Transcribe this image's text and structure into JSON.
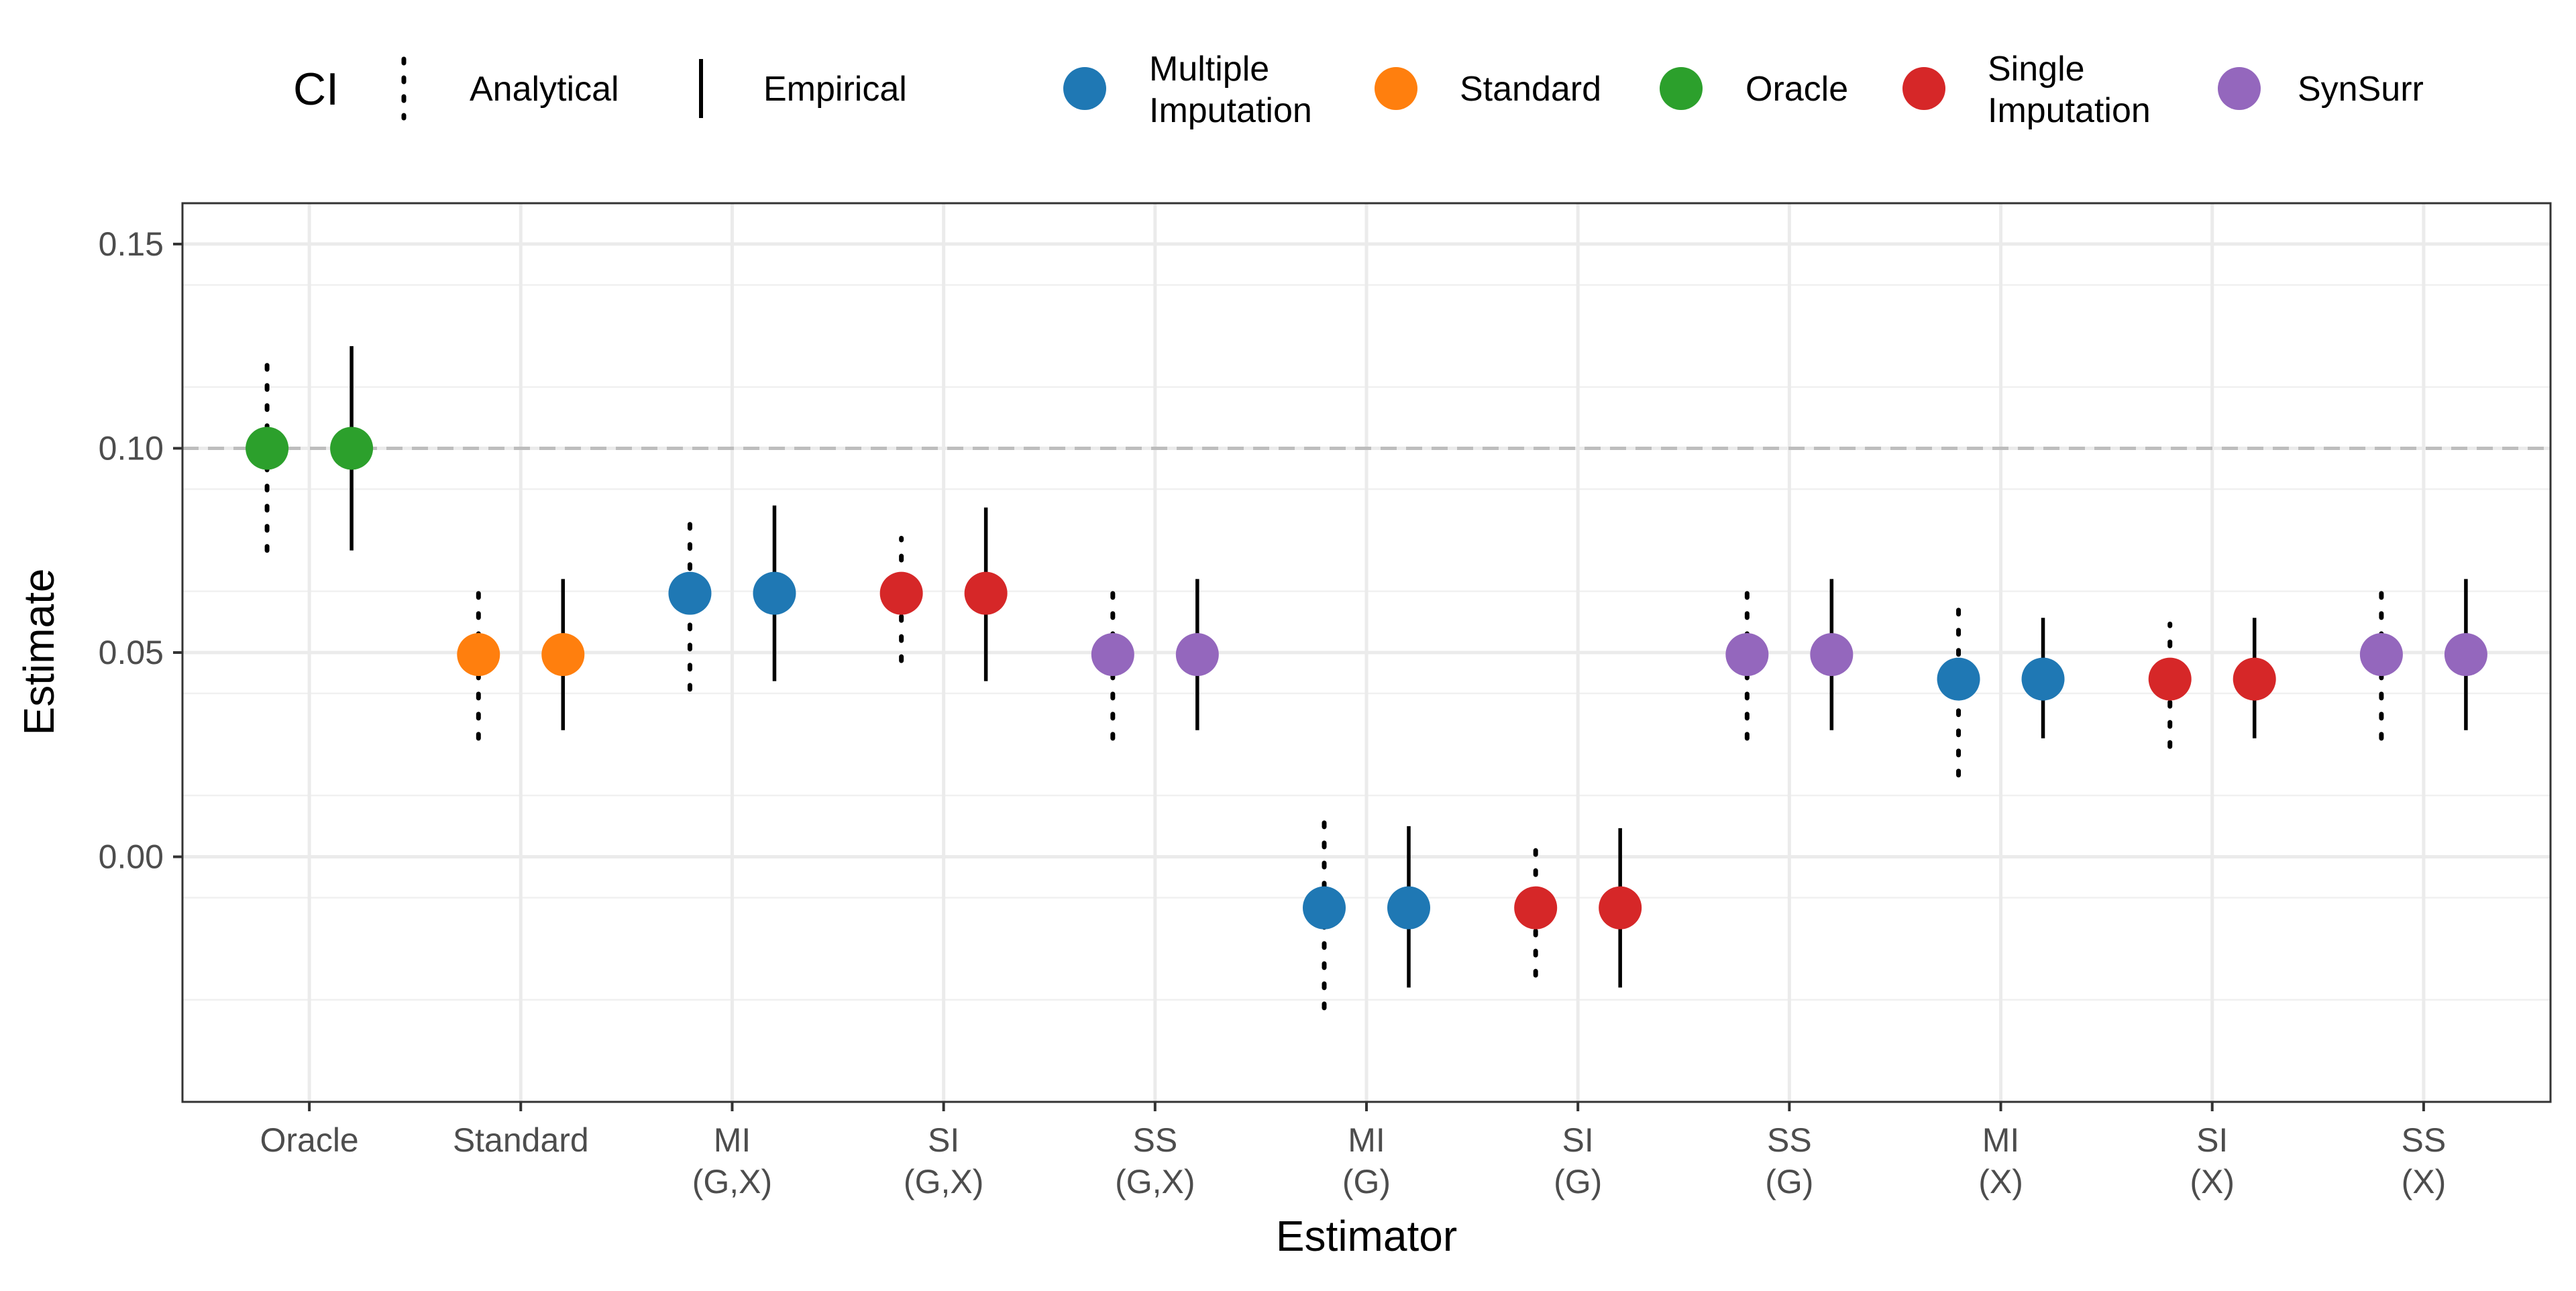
{
  "chart_data": {
    "type": "scatter",
    "title": "",
    "xlabel": "Estimator",
    "ylabel": "Estimate",
    "ylim": [
      -0.06,
      0.16
    ],
    "yticks": [
      0.0,
      0.05,
      0.1,
      0.15
    ],
    "ytick_labels": [
      "0.00",
      "0.05",
      "0.10",
      "0.15"
    ],
    "reference_line": 0.1,
    "grid": true,
    "legend_position": "top",
    "categories": [
      [
        "Oracle"
      ],
      [
        "Standard"
      ],
      [
        "MI",
        "(G,X)"
      ],
      [
        "SI",
        "(G,X)"
      ],
      [
        "SS",
        "(G,X)"
      ],
      [
        "MI",
        "(G)"
      ],
      [
        "SI",
        "(G)"
      ],
      [
        "SS",
        "(G)"
      ],
      [
        "MI",
        "(X)"
      ],
      [
        "SI",
        "(X)"
      ],
      [
        "SS",
        "(X)"
      ]
    ],
    "ci_legend": {
      "title": "CI",
      "items": [
        {
          "label": "Analytical",
          "style": "dotted"
        },
        {
          "label": "Empirical",
          "style": "solid"
        }
      ]
    },
    "method_legend": [
      {
        "label": [
          "Multiple",
          "Imputation"
        ],
        "color": "#1f78b4"
      },
      {
        "label": [
          "Standard"
        ],
        "color": "#ff7f0e"
      },
      {
        "label": [
          "Oracle"
        ],
        "color": "#2ca02c"
      },
      {
        "label": [
          "Single",
          "Imputation"
        ],
        "color": "#d62728"
      },
      {
        "label": [
          "SynSurr"
        ],
        "color": "#9467bd"
      }
    ],
    "points": [
      {
        "category": 0,
        "ci": "Analytical",
        "method": "Oracle",
        "estimate": 0.1,
        "lower": 0.075,
        "upper": 0.123
      },
      {
        "category": 0,
        "ci": "Empirical",
        "method": "Oracle",
        "estimate": 0.1,
        "lower": 0.075,
        "upper": 0.125
      },
      {
        "category": 1,
        "ci": "Analytical",
        "method": "Standard",
        "estimate": 0.0495,
        "lower": 0.029,
        "upper": 0.068
      },
      {
        "category": 1,
        "ci": "Empirical",
        "method": "Standard",
        "estimate": 0.0495,
        "lower": 0.031,
        "upper": 0.068
      },
      {
        "category": 2,
        "ci": "Analytical",
        "method": "Multiple Imputation",
        "estimate": 0.0645,
        "lower": 0.041,
        "upper": 0.085
      },
      {
        "category": 2,
        "ci": "Empirical",
        "method": "Multiple Imputation",
        "estimate": 0.0645,
        "lower": 0.043,
        "upper": 0.086
      },
      {
        "category": 3,
        "ci": "Analytical",
        "method": "Single Imputation",
        "estimate": 0.0645,
        "lower": 0.048,
        "upper": 0.078
      },
      {
        "category": 3,
        "ci": "Empirical",
        "method": "Single Imputation",
        "estimate": 0.0645,
        "lower": 0.043,
        "upper": 0.0855
      },
      {
        "category": 4,
        "ci": "Analytical",
        "method": "SynSurr",
        "estimate": 0.0495,
        "lower": 0.029,
        "upper": 0.068
      },
      {
        "category": 4,
        "ci": "Empirical",
        "method": "SynSurr",
        "estimate": 0.0495,
        "lower": 0.031,
        "upper": 0.068
      },
      {
        "category": 5,
        "ci": "Analytical",
        "method": "Multiple Imputation",
        "estimate": -0.0125,
        "lower": -0.037,
        "upper": 0.012
      },
      {
        "category": 5,
        "ci": "Empirical",
        "method": "Multiple Imputation",
        "estimate": -0.0125,
        "lower": -0.032,
        "upper": 0.0075
      },
      {
        "category": 6,
        "ci": "Analytical",
        "method": "Single Imputation",
        "estimate": -0.0125,
        "lower": -0.029,
        "upper": 0.002
      },
      {
        "category": 6,
        "ci": "Empirical",
        "method": "Single Imputation",
        "estimate": -0.0125,
        "lower": -0.032,
        "upper": 0.007
      },
      {
        "category": 7,
        "ci": "Analytical",
        "method": "SynSurr",
        "estimate": 0.0495,
        "lower": 0.029,
        "upper": 0.068
      },
      {
        "category": 7,
        "ci": "Empirical",
        "method": "SynSurr",
        "estimate": 0.0495,
        "lower": 0.031,
        "upper": 0.068
      },
      {
        "category": 8,
        "ci": "Analytical",
        "method": "Multiple Imputation",
        "estimate": 0.0435,
        "lower": 0.02,
        "upper": 0.064
      },
      {
        "category": 8,
        "ci": "Empirical",
        "method": "Multiple Imputation",
        "estimate": 0.0435,
        "lower": 0.029,
        "upper": 0.0585
      },
      {
        "category": 9,
        "ci": "Analytical",
        "method": "Single Imputation",
        "estimate": 0.0435,
        "lower": 0.027,
        "upper": 0.057
      },
      {
        "category": 9,
        "ci": "Empirical",
        "method": "Single Imputation",
        "estimate": 0.0435,
        "lower": 0.029,
        "upper": 0.0585
      },
      {
        "category": 10,
        "ci": "Analytical",
        "method": "SynSurr",
        "estimate": 0.0495,
        "lower": 0.029,
        "upper": 0.068
      },
      {
        "category": 10,
        "ci": "Empirical",
        "method": "SynSurr",
        "estimate": 0.0495,
        "lower": 0.031,
        "upper": 0.068
      }
    ]
  }
}
